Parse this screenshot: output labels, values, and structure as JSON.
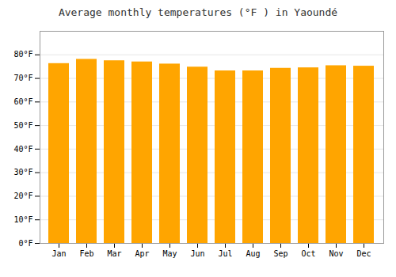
{
  "chart_data": {
    "type": "bar",
    "title": "Average monthly temperatures (°F ) in Yaoundé",
    "categories": [
      "Jan",
      "Feb",
      "Mar",
      "Apr",
      "May",
      "Jun",
      "Jul",
      "Aug",
      "Sep",
      "Oct",
      "Nov",
      "Dec"
    ],
    "values": [
      76.3,
      78.1,
      77.5,
      77.0,
      76.1,
      74.8,
      73.2,
      73.2,
      74.3,
      74.5,
      75.4,
      75.2
    ],
    "color": "#FFA500",
    "ylim": [
      0,
      90
    ],
    "yticks": [
      {
        "value": 0,
        "label": "0°F"
      },
      {
        "value": 10,
        "label": "10°F"
      },
      {
        "value": 20,
        "label": "20°F"
      },
      {
        "value": 30,
        "label": "30°F"
      },
      {
        "value": 40,
        "label": "40°F"
      },
      {
        "value": 50,
        "label": "50°F"
      },
      {
        "value": 60,
        "label": "60°F"
      },
      {
        "value": 70,
        "label": "70°F"
      },
      {
        "value": 80,
        "label": "80°F"
      }
    ],
    "grid": true
  }
}
